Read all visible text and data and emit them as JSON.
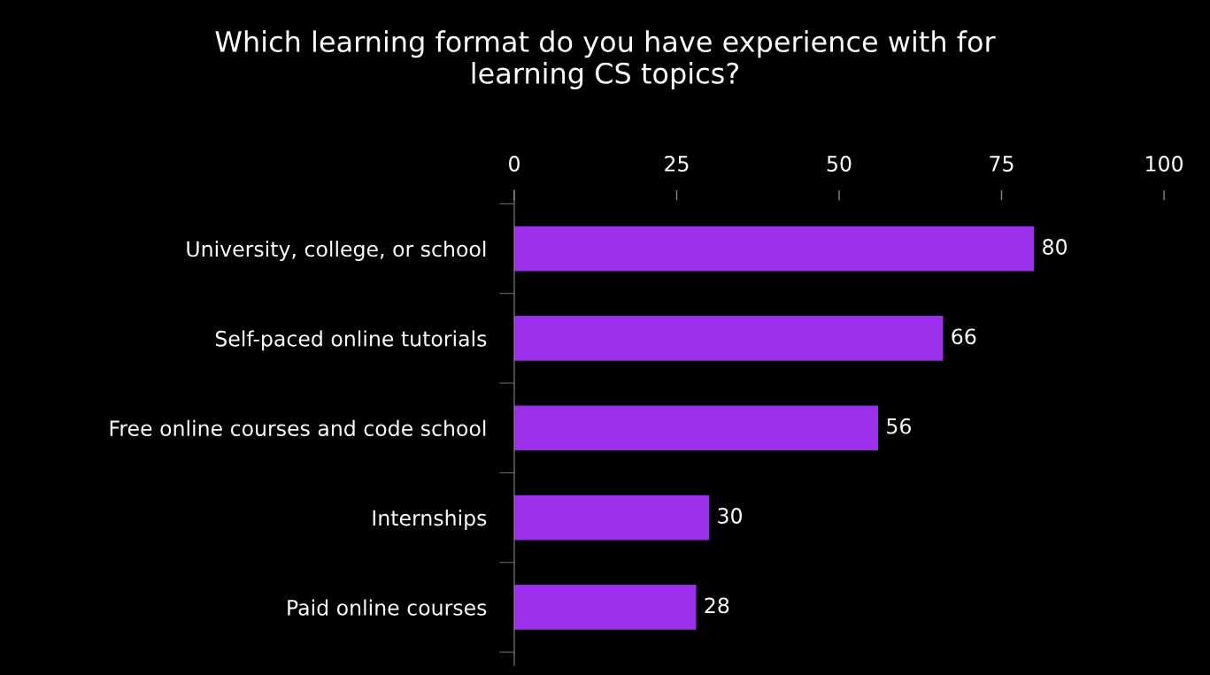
{
  "chart_data": {
    "type": "bar",
    "orientation": "horizontal",
    "title": "Which learning format do you have experience with for\nlearning CS topics?",
    "categories": [
      "University, college, or school",
      "Self-paced online tutorials",
      "Free online courses and code school",
      "Internships",
      "Paid online courses"
    ],
    "values": [
      80,
      66,
      56,
      30,
      28
    ],
    "color": "#9b2fea",
    "xlim": [
      0,
      100
    ],
    "xticks": [
      0,
      25,
      50,
      75,
      100
    ],
    "grid": false,
    "data_labels": true
  }
}
